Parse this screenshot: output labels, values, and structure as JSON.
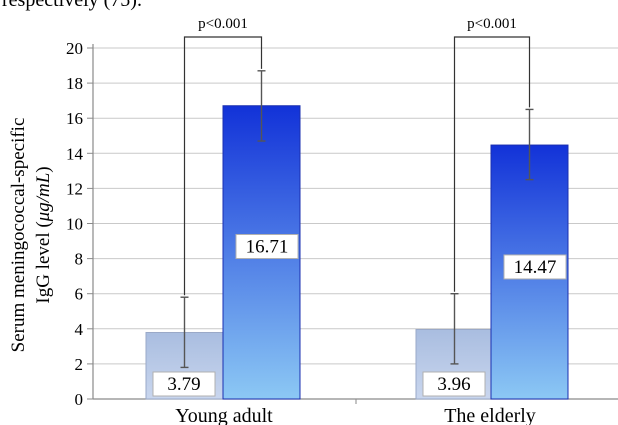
{
  "top_text_fragment": "respectively (75).",
  "chart_data": {
    "type": "bar",
    "categories": [
      "Young adult",
      "The elderly"
    ],
    "series": [
      {
        "values": [
          3.79,
          3.96
        ],
        "error_low": [
          1.8,
          2.0
        ],
        "error_high": [
          5.8,
          6.0
        ],
        "value_labels": [
          "3.79",
          "3.96"
        ],
        "color_top": "#a9bde0",
        "color_bottom": "#c9d6ee"
      },
      {
        "values": [
          16.71,
          14.47
        ],
        "error_low": [
          14.7,
          12.5
        ],
        "error_high": [
          18.7,
          16.5
        ],
        "value_labels": [
          "16.71",
          "14.47"
        ],
        "color_top": "#1232d8",
        "color_bottom": "#8cc8f4"
      }
    ],
    "ylabel_line1": "Serum meningococcal-specific",
    "ylabel_line2_prefix": "IgG level (",
    "ylabel_unit": "μg/mL",
    "ylabel_line2_suffix": ")",
    "ylim": [
      0,
      20
    ],
    "yticks": [
      "0",
      "2",
      "4",
      "6",
      "8",
      "10",
      "12",
      "14",
      "16",
      "18",
      "20"
    ],
    "grid": true,
    "annotations": [
      "p<0.001",
      "p<0.001"
    ]
  }
}
